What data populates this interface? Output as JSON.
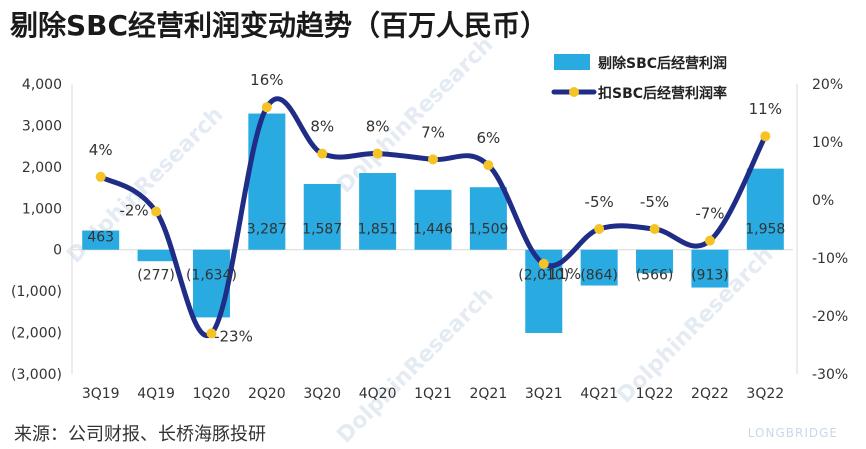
{
  "title": "剔除SBC经营利润变动趋势（百万人民币）",
  "source": "来源：公司财报、长桥海豚投研",
  "brand": "LONGBRIDGE",
  "colors": {
    "bar": "#29abe2",
    "line": "#1f2d86",
    "marker": "#f6c324"
  },
  "chart_data": {
    "type": "bar",
    "categories": [
      "3Q19",
      "4Q19",
      "1Q20",
      "2Q20",
      "3Q20",
      "4Q20",
      "1Q21",
      "2Q21",
      "3Q21",
      "4Q21",
      "1Q22",
      "2Q22",
      "3Q22"
    ],
    "series": [
      {
        "name": "剔除SBC后经营利润",
        "type": "bar",
        "axis": "left",
        "values": [
          463,
          -277,
          -1634,
          3287,
          1587,
          1851,
          1446,
          1509,
          -2010,
          -864,
          -566,
          -913,
          1958
        ],
        "labels": [
          "463",
          "(277)",
          "(1,634)",
          "3,287",
          "1,587",
          "1,851",
          "1,446",
          "1,509",
          "(2,010)",
          "(864)",
          "(566)",
          "(913)",
          "1,958"
        ]
      },
      {
        "name": "扣SBC后经营利润率",
        "type": "line",
        "axis": "right",
        "values": [
          4,
          -2,
          -23,
          16,
          8,
          8,
          7,
          6,
          -11,
          -5,
          -5,
          -7,
          11
        ],
        "labels": [
          "4%",
          "-2%",
          "-23%",
          "16%",
          "8%",
          "8%",
          "7%",
          "6%",
          "-11%",
          "-5%",
          "-5%",
          "-7%",
          "11%"
        ]
      }
    ],
    "y_left": {
      "min": -3000,
      "max": 4000,
      "step": 1000,
      "tick_labels": [
        "(3,000)",
        "(2,000)",
        "(1,000)",
        "0",
        "1,000",
        "2,000",
        "3,000",
        "4,000"
      ]
    },
    "y_right": {
      "min": -30,
      "max": 20,
      "step": 10,
      "tick_labels": [
        "-30%",
        "-20%",
        "-10%",
        "0%",
        "10%",
        "20%"
      ]
    },
    "grid": false,
    "legend": "top-right"
  }
}
